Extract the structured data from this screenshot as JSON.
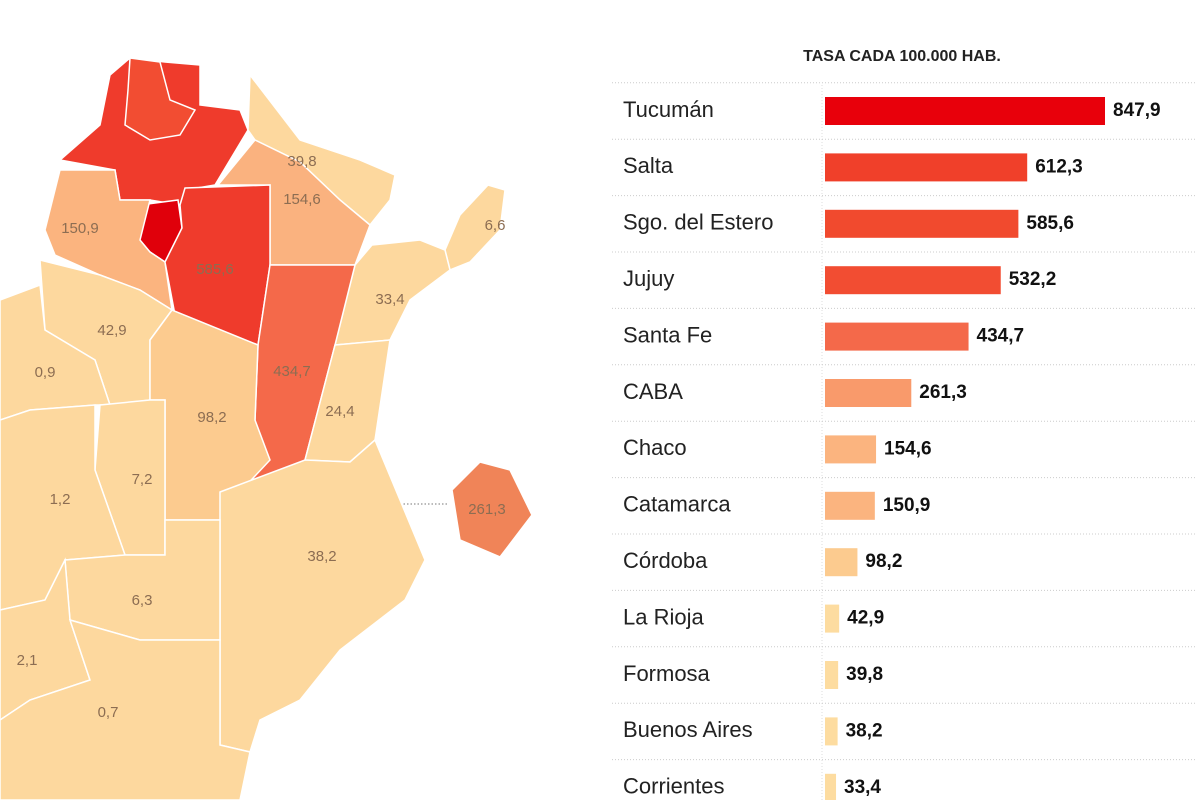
{
  "chart_data": [
    {
      "type": "map",
      "values": [
        612.3,
        532.2,
        847.9,
        39.8,
        154.6,
        150.9,
        585.6,
        6.6,
        33.4,
        434.7,
        24.4,
        42.9,
        0.9,
        98.2,
        7.2,
        1.2,
        38.2,
        6.3,
        2.1,
        0.7,
        261.3
      ],
      "value_labels": [
        null,
        null,
        null,
        "39,8",
        "154,6",
        "150,9",
        "585,6",
        "6,6",
        "33,4",
        "434,7",
        "24,4",
        "42,9",
        "0,9",
        "98,2",
        "7,2",
        "1,2",
        "38,2",
        "6,3",
        "2,1",
        "0,7",
        "261,3"
      ],
      "colors": [
        "#ef3b2c",
        "#f24d32",
        "#e0000b",
        "#fdd89e",
        "#fab27f",
        "#fbb47f",
        "#ef3b2c",
        "#fdd89e",
        "#fdd89e",
        "#f4694a",
        "#fdd89e",
        "#fdd89e",
        "#fdd89e",
        "#fccb8f",
        "#fdd89e",
        "#fdd89e",
        "#fdd89e",
        "#fdd89e",
        "#fdd89e",
        "#fdd89e",
        "#f08458"
      ]
    },
    {
      "type": "bar",
      "title": "TASA CADA 100.000 HAB.",
      "categories": [
        "Tucumán",
        "Salta",
        "Sgo. del Estero",
        "Jujuy",
        "Santa Fe",
        "CABA",
        "Chaco",
        "Catamarca",
        "Córdoba",
        "La Rioja",
        "Formosa",
        "Buenos Aires",
        "Corrientes"
      ],
      "values": [
        847.9,
        612.3,
        585.6,
        532.2,
        434.7,
        261.3,
        154.6,
        150.9,
        98.2,
        42.9,
        39.8,
        38.2,
        33.4
      ],
      "value_labels": [
        "847,9",
        "612,3",
        "585,6",
        "532,2",
        "434,7",
        "261,3",
        "154,6",
        "150,9",
        "98,2",
        "42,9",
        "39,8",
        "38,2",
        "33,4"
      ],
      "colors": [
        "#e8000b",
        "#f0402a",
        "#f14a2e",
        "#f24d32",
        "#f4694a",
        "#f99a6b",
        "#fbb47f",
        "#fbb47f",
        "#fccb8f",
        "#fddca0",
        "#fddca0",
        "#fddca0",
        "#fddca0"
      ]
    }
  ]
}
